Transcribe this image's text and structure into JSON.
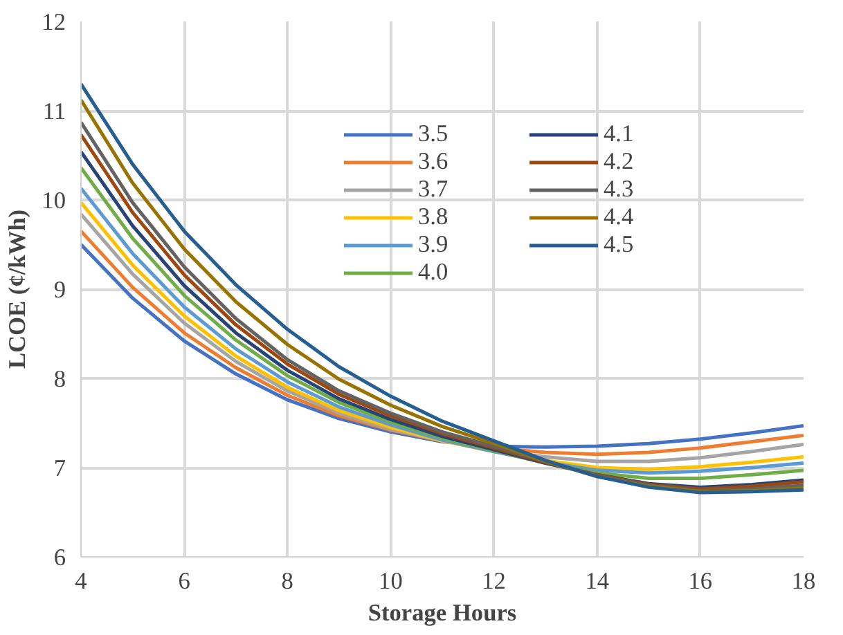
{
  "chart_data": {
    "type": "line",
    "xlabel": "Storage Hours",
    "ylabel": "LCOE (¢/kWh)",
    "x": [
      4,
      5,
      6,
      7,
      8,
      9,
      10,
      11,
      12,
      13,
      14,
      15,
      16,
      17,
      18
    ],
    "xlim": [
      4,
      18
    ],
    "xticks": [
      4,
      6,
      8,
      10,
      12,
      14,
      16,
      18
    ],
    "ylim": [
      6,
      12
    ],
    "yticks": [
      6,
      7,
      8,
      9,
      10,
      11,
      12
    ],
    "grid": true,
    "legend": "top right",
    "marker": "none",
    "line_style": "solid",
    "series": [
      {
        "name": "3.5",
        "color": "#4472c4",
        "values": [
          9.5,
          8.9,
          8.42,
          8.05,
          7.76,
          7.55,
          7.4,
          7.29,
          7.24,
          7.23,
          7.24,
          7.27,
          7.32,
          7.39,
          7.47
        ]
      },
      {
        "name": "3.6",
        "color": "#ed7d31",
        "values": [
          9.65,
          9.02,
          8.51,
          8.12,
          7.81,
          7.58,
          7.42,
          7.3,
          7.22,
          7.17,
          7.15,
          7.17,
          7.22,
          7.29,
          7.36
        ]
      },
      {
        "name": "3.7",
        "color": "#a5a5a5",
        "values": [
          9.84,
          9.17,
          8.62,
          8.19,
          7.86,
          7.61,
          7.43,
          7.3,
          7.2,
          7.12,
          7.07,
          7.07,
          7.11,
          7.18,
          7.26
        ]
      },
      {
        "name": "3.8",
        "color": "#ffc000",
        "values": [
          9.97,
          9.27,
          8.7,
          8.25,
          7.9,
          7.64,
          7.45,
          7.3,
          7.18,
          7.08,
          7.0,
          6.98,
          7.01,
          7.06,
          7.12
        ]
      },
      {
        "name": "3.9",
        "color": "#5b9bd5",
        "values": [
          10.13,
          9.4,
          8.8,
          8.33,
          7.96,
          7.68,
          7.48,
          7.31,
          7.18,
          7.06,
          6.97,
          6.94,
          6.96,
          7.0,
          7.05
        ]
      },
      {
        "name": "4.0",
        "color": "#70ad47",
        "values": [
          10.36,
          9.57,
          8.93,
          8.43,
          8.03,
          7.73,
          7.51,
          7.33,
          7.19,
          7.05,
          6.94,
          6.88,
          6.88,
          6.92,
          6.97
        ]
      },
      {
        "name": "4.1",
        "color": "#264478",
        "values": [
          10.54,
          9.71,
          9.04,
          8.51,
          8.09,
          7.77,
          7.54,
          7.35,
          7.2,
          7.05,
          6.92,
          6.82,
          6.78,
          6.81,
          6.86
        ]
      },
      {
        "name": "4.2",
        "color": "#9e480e",
        "values": [
          10.73,
          9.86,
          9.16,
          8.6,
          8.16,
          7.82,
          7.58,
          7.38,
          7.22,
          7.06,
          6.92,
          6.81,
          6.76,
          6.79,
          6.84
        ]
      },
      {
        "name": "4.3",
        "color": "#636363",
        "values": [
          10.87,
          9.97,
          9.25,
          8.67,
          8.21,
          7.86,
          7.61,
          7.4,
          7.24,
          7.07,
          6.91,
          6.8,
          6.74,
          6.76,
          6.8
        ]
      },
      {
        "name": "4.4",
        "color": "#997300",
        "values": [
          11.12,
          10.19,
          9.45,
          8.86,
          8.38,
          7.99,
          7.7,
          7.46,
          7.27,
          7.07,
          6.9,
          6.79,
          6.73,
          6.74,
          6.77
        ]
      },
      {
        "name": "4.5",
        "color": "#255e91",
        "values": [
          11.3,
          10.4,
          9.65,
          9.05,
          8.55,
          8.13,
          7.8,
          7.52,
          7.3,
          7.08,
          6.9,
          6.78,
          6.72,
          6.73,
          6.75
        ]
      }
    ]
  }
}
